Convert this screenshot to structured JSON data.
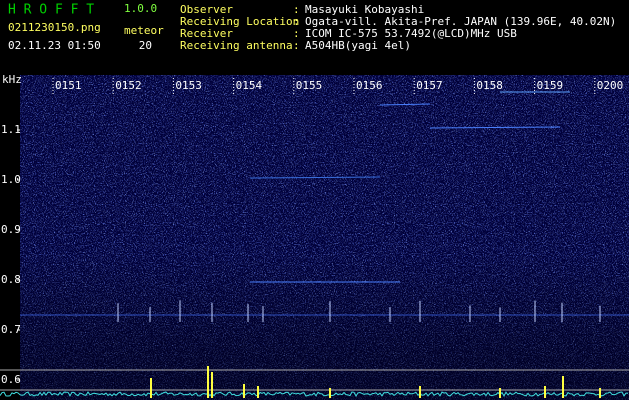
{
  "header": {
    "title": "H R O F F T",
    "version": "1.0.0",
    "filename": "0211230150.png",
    "datetime": "02.11.23 01:50",
    "meteor_label": "meteor",
    "meteor_count": 20
  },
  "info": {
    "separator": ":",
    "rows": [
      {
        "label": "Observer",
        "value": "Masayuki Kobayashi"
      },
      {
        "label": "Receiving Location",
        "value": "Ogata-vill. Akita-Pref. JAPAN (139.96E, 40.02N)"
      },
      {
        "label": "Receiver",
        "value": "ICOM IC-575 53.7492(@LCD)MHz USB"
      },
      {
        "label": "Receiving antenna",
        "value": "A504HB(yagi 4el)"
      }
    ]
  },
  "y_axis": {
    "unit": "kHz",
    "labels": [
      "1.1",
      "1.0",
      "0.9",
      "0.8",
      "0.7",
      "0.6"
    ]
  },
  "time_labels": [
    "0151",
    "0152",
    "0153",
    "0154",
    "0155",
    "0156",
    "0157",
    "0158",
    "0159",
    "0200"
  ]
}
